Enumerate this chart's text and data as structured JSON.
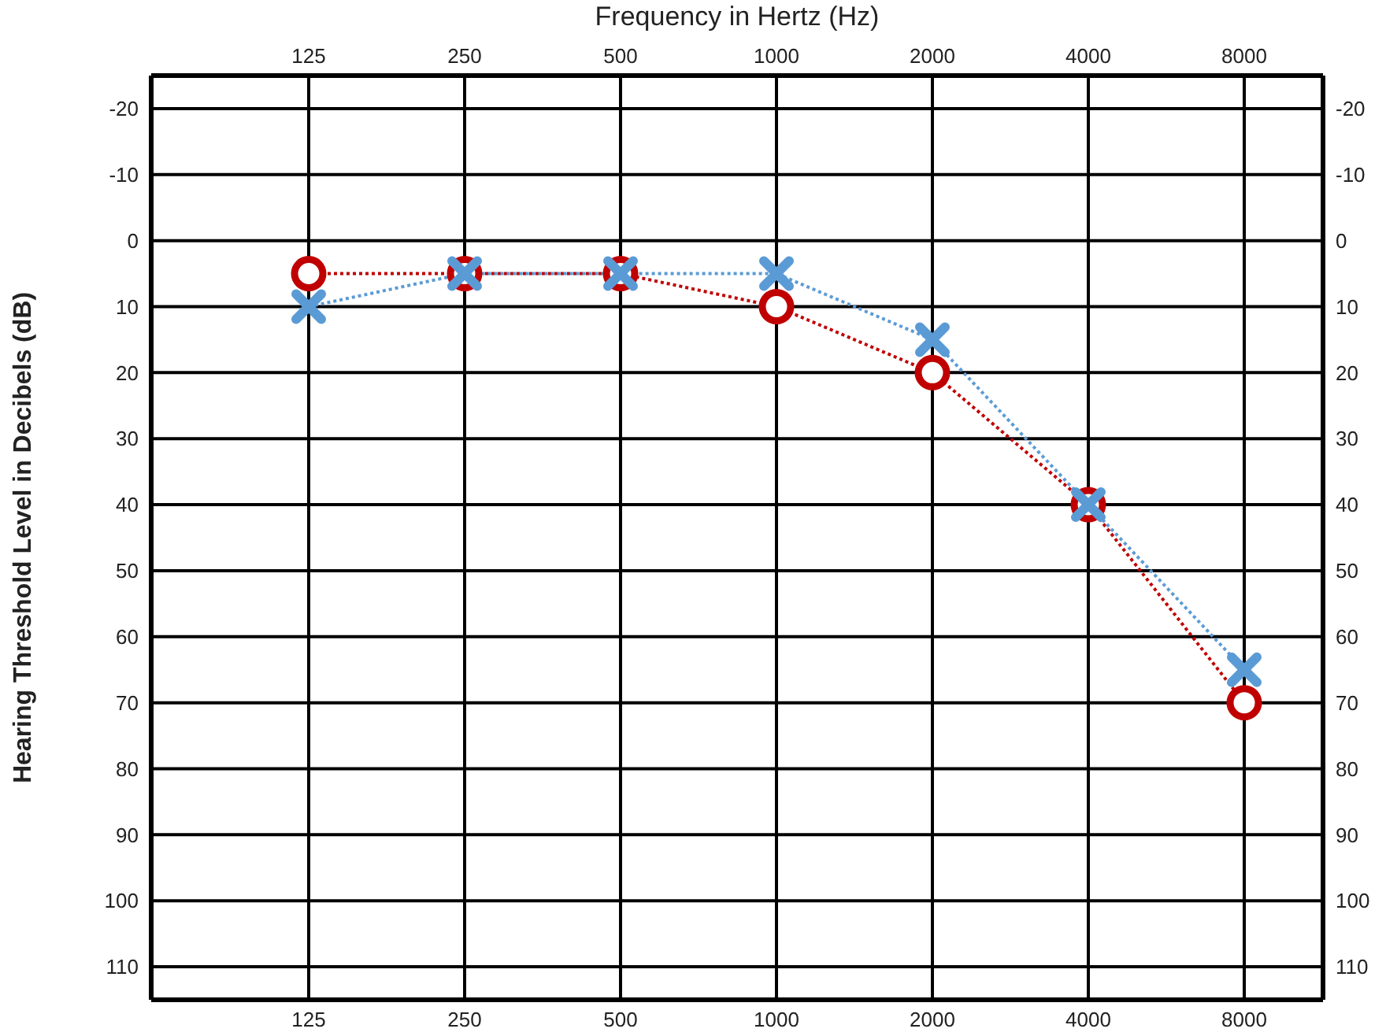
{
  "chart_data": {
    "type": "line",
    "title": "Frequency in Hertz (Hz)",
    "ylabel": "Hearing Threshold Level in Decibels (dB)",
    "categories": [
      "125",
      "250",
      "500",
      "1000",
      "2000",
      "4000",
      "8000"
    ],
    "series": [
      {
        "color": "#c00000",
        "values": [
          5,
          5,
          5,
          10,
          20,
          40,
          70
        ],
        "marker": "circle"
      },
      {
        "color": "#5b9bd5",
        "values": [
          10,
          5,
          5,
          5,
          15,
          40,
          65
        ],
        "marker": "cross"
      }
    ],
    "ylim": [
      115,
      -25
    ],
    "yticks": [
      -20,
      -10,
      0,
      10,
      20,
      30,
      40,
      50,
      60,
      70,
      80,
      90,
      100,
      110
    ],
    "y2lim": [
      115,
      -25
    ],
    "y2ticks": [
      -20,
      -10,
      0,
      10,
      20,
      30,
      40,
      50,
      60,
      70,
      80,
      90,
      100,
      110
    ],
    "grid": true,
    "line_style": "dotted",
    "legend": false
  }
}
